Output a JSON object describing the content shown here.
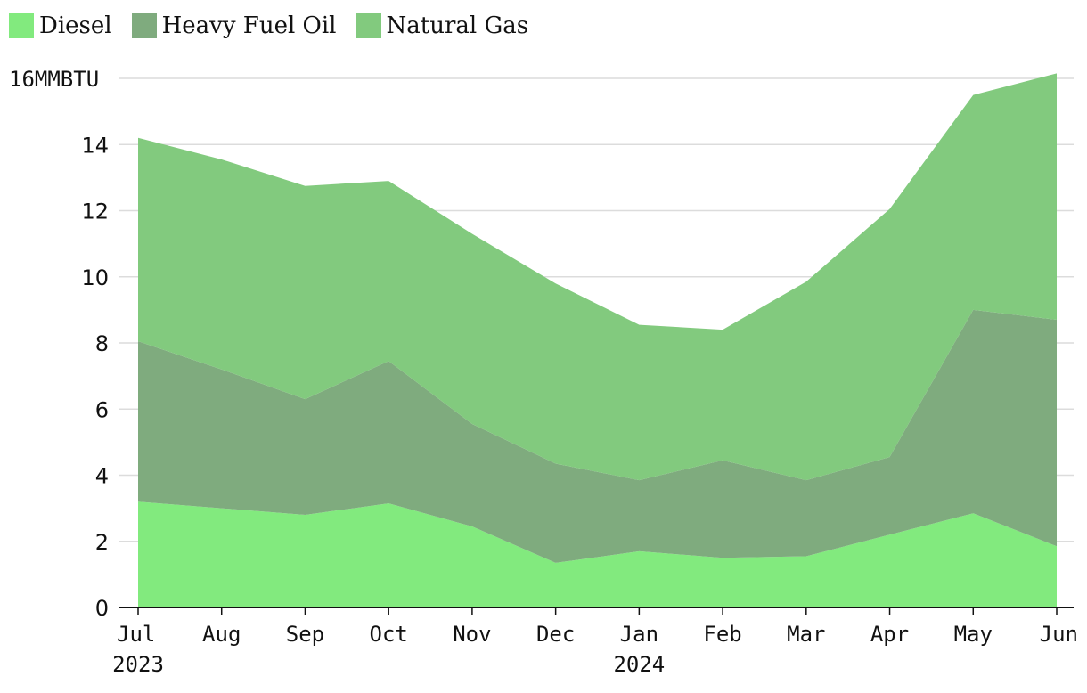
{
  "chart_data": {
    "type": "area",
    "stacked": true,
    "title": "",
    "xlabel": "",
    "ylabel": "MMBTU",
    "y_unit": "MMBTU",
    "ylim": [
      0,
      16
    ],
    "yticks": [
      0,
      2,
      4,
      6,
      8,
      10,
      12,
      14,
      16
    ],
    "ytick_labels": [
      "0",
      "2",
      "4",
      "6",
      "8",
      "10",
      "12",
      "14",
      "16"
    ],
    "categories": [
      "Jul",
      "Aug",
      "Sep",
      "Oct",
      "Nov",
      "Dec",
      "Jan",
      "Feb",
      "Mar",
      "Apr",
      "May",
      "Jun"
    ],
    "year_labels": [
      {
        "index": 0,
        "label": "2023"
      },
      {
        "index": 6,
        "label": "2024"
      }
    ],
    "legend_position": "top-left",
    "grid": true,
    "series": [
      {
        "name": "Diesel",
        "color": "#82ea7e",
        "values": [
          3.2,
          3.0,
          2.8,
          3.15,
          2.45,
          1.35,
          1.7,
          1.5,
          1.55,
          2.2,
          2.85,
          1.85
        ]
      },
      {
        "name": "Heavy Fuel Oil",
        "color": "#7fab7e",
        "values": [
          4.85,
          4.2,
          3.5,
          4.3,
          3.1,
          3.0,
          2.15,
          2.95,
          2.3,
          2.35,
          6.15,
          6.85
        ]
      },
      {
        "name": "Natural Gas",
        "color": "#82ca7e",
        "values": [
          6.15,
          6.35,
          6.45,
          5.45,
          5.75,
          5.45,
          4.7,
          3.95,
          6.0,
          7.5,
          6.5,
          7.45
        ]
      }
    ]
  }
}
